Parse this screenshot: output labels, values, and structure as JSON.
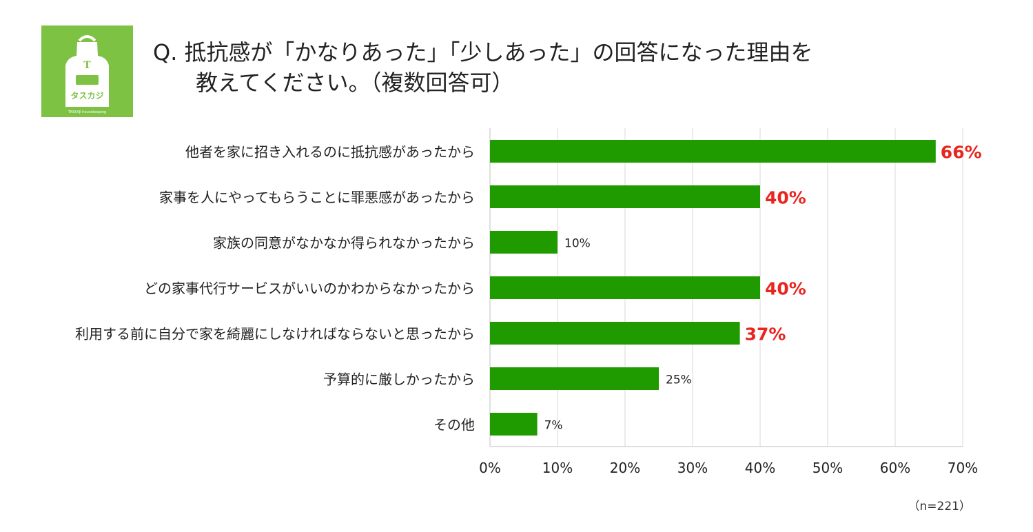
{
  "logo": {
    "letter": "T",
    "name": "タスカジ",
    "tagline": "TASKAJI housekeeping"
  },
  "title": {
    "line1": "Q. 抵抗感が「かなりあった」「少しあった」の回答になった理由を",
    "line2": "教えてください。（複数回答可）"
  },
  "note": "（n=221）",
  "colors": {
    "bar": "#1f9b00",
    "highlight": "#e8251e",
    "label": "#222222",
    "grid": "#d9d9d9"
  },
  "chart_data": {
    "type": "bar",
    "orientation": "horizontal",
    "categories": [
      "他者を家に招き入れるのに抵抗感があったから",
      "家事を人にやってもらうことに罪悪感があったから",
      "家族の同意がなかなか得られなかったから",
      "どの家事代行サービスがいいのかわからなかったから",
      "利用する前に自分で家を綺麗にしなければならないと思ったから",
      "予算的に厳しかったから",
      "その他"
    ],
    "values": [
      66,
      40,
      10,
      40,
      37,
      25,
      7
    ],
    "value_labels": [
      "66%",
      "40%",
      "10%",
      "40%",
      "37%",
      "25%",
      "7%"
    ],
    "highlighted": [
      true,
      true,
      false,
      true,
      true,
      false,
      false
    ],
    "xlim": [
      0,
      70
    ],
    "xticks": [
      0,
      10,
      20,
      30,
      40,
      50,
      60,
      70
    ],
    "xtick_labels": [
      "0%",
      "10%",
      "20%",
      "30%",
      "40%",
      "50%",
      "60%",
      "70%"
    ],
    "grid": true,
    "legend": "none"
  }
}
